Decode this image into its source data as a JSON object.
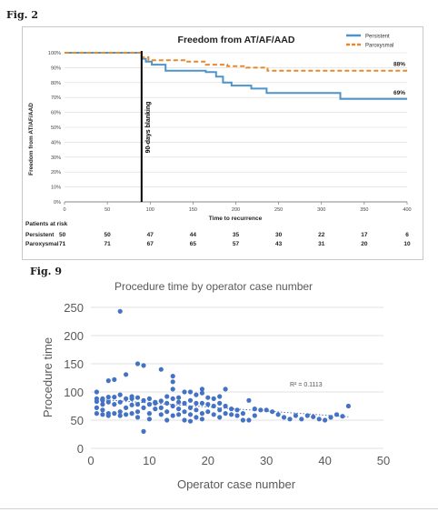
{
  "fig2_label": "Fig. 2",
  "fig9_label": "Fig. 9",
  "colors": {
    "persistent": "#4f94c8",
    "paroxysmal": "#e58a2c",
    "scatter": "#4472c4",
    "axis": "#666666",
    "grid": "#d9d9d9",
    "blanking_line": "#000000"
  },
  "chart_data": [
    {
      "type": "line",
      "title": "Freedom from AT/AF/AAD",
      "xlabel": "Time to recurrence",
      "ylabel": "Freedom from AT/AF/AAD",
      "xlim": [
        0,
        400
      ],
      "ylim": [
        0,
        100
      ],
      "x_ticks": [
        0,
        50,
        100,
        150,
        200,
        250,
        300,
        350,
        400
      ],
      "y_ticks": [
        "0%",
        "10%",
        "20%",
        "30%",
        "40%",
        "50%",
        "60%",
        "70%",
        "80%",
        "90%",
        "100%"
      ],
      "grid": "horizontal",
      "legend_placement": "top-right",
      "series": [
        {
          "name": "Persistent",
          "style": "solid",
          "steps": [
            [
              0,
              100
            ],
            [
              90,
              100
            ],
            [
              90,
              96
            ],
            [
              95,
              96
            ],
            [
              95,
              94
            ],
            [
              102,
              94
            ],
            [
              102,
              92
            ],
            [
              118,
              92
            ],
            [
              118,
              88
            ],
            [
              165,
              88
            ],
            [
              165,
              87
            ],
            [
              177,
              87
            ],
            [
              177,
              84
            ],
            [
              185,
              84
            ],
            [
              185,
              80
            ],
            [
              195,
              80
            ],
            [
              195,
              78
            ],
            [
              218,
              78
            ],
            [
              218,
              76
            ],
            [
              236,
              76
            ],
            [
              236,
              73
            ],
            [
              322,
              73
            ],
            [
              322,
              69
            ],
            [
              400,
              69
            ]
          ],
          "end_label": "69%"
        },
        {
          "name": "Paroxysmal",
          "style": "dashed",
          "steps": [
            [
              0,
              100
            ],
            [
              90,
              100
            ],
            [
              90,
              97
            ],
            [
              98,
              97
            ],
            [
              98,
              95
            ],
            [
              140,
              95
            ],
            [
              140,
              94
            ],
            [
              165,
              94
            ],
            [
              165,
              92
            ],
            [
              190,
              92
            ],
            [
              190,
              91
            ],
            [
              212,
              91
            ],
            [
              212,
              90
            ],
            [
              237,
              90
            ],
            [
              237,
              88
            ],
            [
              400,
              88
            ]
          ],
          "end_label": "88%"
        }
      ],
      "blanking": {
        "x": 90,
        "label": "90-days blanking"
      },
      "risk_table": {
        "title": "Patients at risk",
        "rows": [
          {
            "label": "Persistent",
            "counts": [
              "50",
              "50",
              "47",
              "44",
              "35",
              "30",
              "22",
              "17",
              "6"
            ]
          },
          {
            "label": "Paroxysmal",
            "counts": [
              "71",
              "71",
              "67",
              "65",
              "57",
              "43",
              "31",
              "20",
              "10"
            ]
          }
        ]
      }
    },
    {
      "type": "scatter",
      "title": "Procedure time by operator case number",
      "xlabel": "Operator case number",
      "ylabel": "Procedure time",
      "xlim": [
        0,
        50
      ],
      "ylim": [
        0,
        250
      ],
      "x_ticks": [
        0,
        10,
        20,
        30,
        40,
        50
      ],
      "y_ticks": [
        0,
        50,
        100,
        150,
        200,
        250
      ],
      "grid": "horizontal",
      "trendline": {
        "style": "dotted",
        "from": [
          1,
          87
        ],
        "to": [
          44,
          56
        ],
        "label": "R² = 0.1113"
      },
      "points": [
        [
          1,
          100
        ],
        [
          1,
          88
        ],
        [
          1,
          83
        ],
        [
          1,
          72
        ],
        [
          1,
          62
        ],
        [
          2,
          85
        ],
        [
          2,
          78
        ],
        [
          2,
          68
        ],
        [
          2,
          60
        ],
        [
          2,
          88
        ],
        [
          3,
          91
        ],
        [
          3,
          120
        ],
        [
          3,
          82
        ],
        [
          3,
          62
        ],
        [
          3,
          58
        ],
        [
          4,
          122
        ],
        [
          4,
          91
        ],
        [
          4,
          78
        ],
        [
          4,
          62
        ],
        [
          5,
          243
        ],
        [
          5,
          95
        ],
        [
          5,
          82
        ],
        [
          5,
          65
        ],
        [
          5,
          58
        ],
        [
          6,
          131
        ],
        [
          6,
          88
        ],
        [
          6,
          72
        ],
        [
          6,
          60
        ],
        [
          7,
          92
        ],
        [
          7,
          88
        ],
        [
          7,
          77
        ],
        [
          7,
          62
        ],
        [
          8,
          150
        ],
        [
          8,
          90
        ],
        [
          8,
          78
        ],
        [
          8,
          65
        ],
        [
          8,
          55
        ],
        [
          9,
          147
        ],
        [
          9,
          85
        ],
        [
          9,
          72
        ],
        [
          9,
          30
        ],
        [
          10,
          88
        ],
        [
          10,
          78
        ],
        [
          10,
          62
        ],
        [
          10,
          52
        ],
        [
          11,
          82
        ],
        [
          11,
          70
        ],
        [
          11,
          80
        ],
        [
          12,
          140
        ],
        [
          12,
          84
        ],
        [
          12,
          72
        ],
        [
          12,
          60
        ],
        [
          13,
          92
        ],
        [
          13,
          80
        ],
        [
          13,
          65
        ],
        [
          13,
          50
        ],
        [
          14,
          128
        ],
        [
          14,
          118
        ],
        [
          14,
          105
        ],
        [
          14,
          88
        ],
        [
          14,
          75
        ],
        [
          14,
          58
        ],
        [
          15,
          90
        ],
        [
          15,
          82
        ],
        [
          15,
          70
        ],
        [
          15,
          60
        ],
        [
          16,
          100
        ],
        [
          16,
          80
        ],
        [
          16,
          65
        ],
        [
          16,
          50
        ],
        [
          17,
          100
        ],
        [
          17,
          85
        ],
        [
          17,
          72
        ],
        [
          17,
          60
        ],
        [
          17,
          48
        ],
        [
          18,
          95
        ],
        [
          18,
          80
        ],
        [
          18,
          68
        ],
        [
          18,
          55
        ],
        [
          19,
          105
        ],
        [
          19,
          98
        ],
        [
          19,
          80
        ],
        [
          19,
          62
        ],
        [
          19,
          52
        ],
        [
          20,
          90
        ],
        [
          20,
          78
        ],
        [
          20,
          65
        ],
        [
          21,
          88
        ],
        [
          21,
          75
        ],
        [
          21,
          60
        ],
        [
          22,
          92
        ],
        [
          22,
          80
        ],
        [
          22,
          68
        ],
        [
          22,
          55
        ],
        [
          23,
          105
        ],
        [
          23,
          75
        ],
        [
          23,
          62
        ],
        [
          24,
          70
        ],
        [
          24,
          60
        ],
        [
          25,
          68
        ],
        [
          25,
          58
        ],
        [
          26,
          62
        ],
        [
          26,
          50
        ],
        [
          27,
          85
        ],
        [
          27,
          50
        ],
        [
          28,
          70
        ],
        [
          28,
          58
        ],
        [
          29,
          68
        ],
        [
          30,
          68
        ],
        [
          31,
          65
        ],
        [
          32,
          60
        ],
        [
          33,
          55
        ],
        [
          34,
          52
        ],
        [
          35,
          58
        ],
        [
          36,
          52
        ],
        [
          37,
          58
        ],
        [
          38,
          56
        ],
        [
          39,
          52
        ],
        [
          40,
          50
        ],
        [
          41,
          55
        ],
        [
          42,
          60
        ],
        [
          43,
          57
        ],
        [
          44,
          75
        ]
      ]
    }
  ]
}
